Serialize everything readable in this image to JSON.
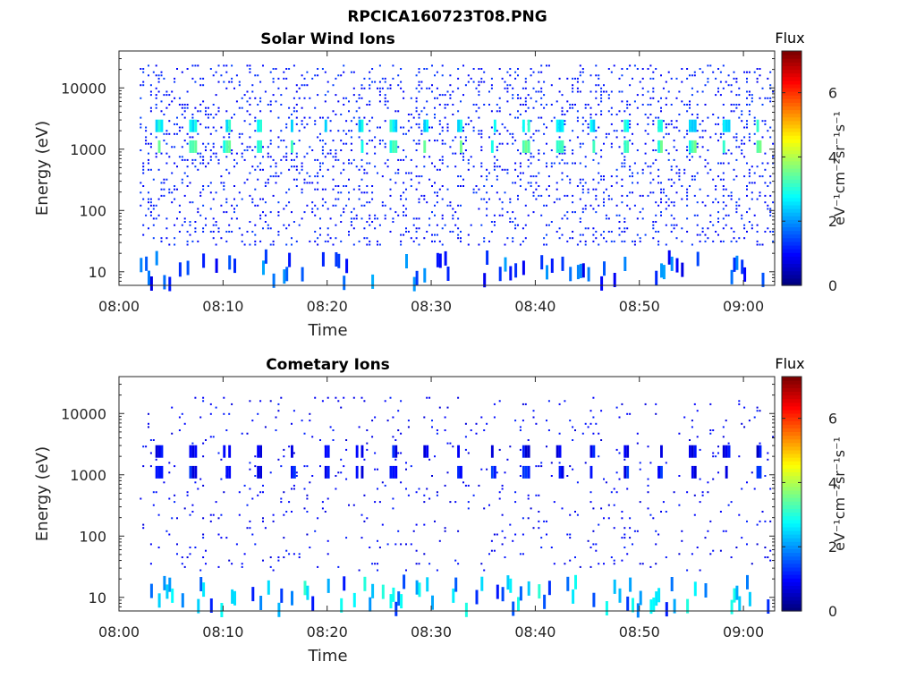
{
  "figure": {
    "filename_title": "RPCICA160723T08.PNG"
  },
  "chart_data": [
    {
      "type": "heatmap",
      "title": "Solar Wind Ions",
      "xlabel": "Time",
      "ylabel": "Energy (eV)",
      "x_ticks": [
        "08:00",
        "08:10",
        "08:20",
        "08:30",
        "08:40",
        "08:50",
        "09:00"
      ],
      "x_range": [
        "08:00",
        "09:03"
      ],
      "y_ticks": [
        "10",
        "100",
        "1000",
        "10000"
      ],
      "y_scale": "log",
      "y_range": [
        6,
        40000
      ],
      "colorbar": {
        "title": "Flux",
        "label": "eV⁻¹cm⁻²sr⁻¹s⁻¹",
        "ticks": [
          "0",
          "2",
          "4",
          "6"
        ],
        "range": [
          0,
          7.3
        ]
      },
      "beam": {
        "energy_bands_eV": [
          1100,
          2400
        ],
        "flux_level": 3.2,
        "sweep_start_min": 3.5,
        "sweep_period_min": 3.2
      },
      "background": {
        "energy_range_eV": [
          25,
          25000
        ],
        "flux_level": 0.8
      },
      "low_energy_band": {
        "energy_range_eV": [
          6,
          18
        ],
        "flux_level": 1.8
      }
    },
    {
      "type": "heatmap",
      "title": "Cometary Ions",
      "xlabel": "Time",
      "ylabel": "Energy (eV)",
      "x_ticks": [
        "08:00",
        "08:10",
        "08:20",
        "08:30",
        "08:40",
        "08:50",
        "09:00"
      ],
      "x_range": [
        "08:00",
        "09:03"
      ],
      "y_ticks": [
        "10",
        "100",
        "1000",
        "10000"
      ],
      "y_scale": "log",
      "y_range": [
        6,
        40000
      ],
      "colorbar": {
        "title": "Flux",
        "label": "eV⁻¹cm⁻²sr⁻¹s⁻¹",
        "ticks": [
          "0",
          "2",
          "4",
          "6"
        ],
        "range": [
          0,
          7.3
        ]
      },
      "beam": {
        "energy_bands_eV": [
          1100,
          2400
        ],
        "flux_level": 1.0,
        "sweep_start_min": 3.5,
        "sweep_period_min": 3.2
      },
      "background": {
        "energy_range_eV": [
          25,
          20000
        ],
        "flux_level": 0.6
      },
      "low_energy_band": {
        "energy_range_eV": [
          6,
          18
        ],
        "flux_level": 2.6
      }
    }
  ]
}
